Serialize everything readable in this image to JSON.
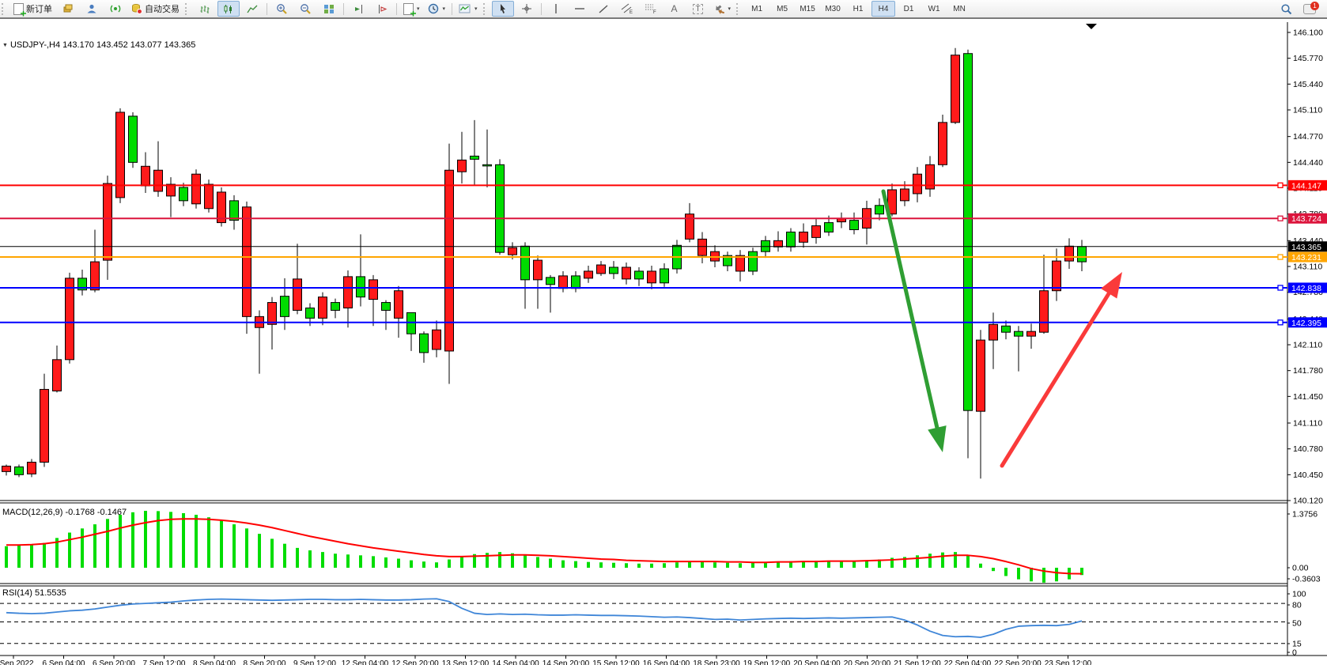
{
  "toolbar": {
    "new_order_label": "新订单",
    "auto_trading_label": "自动交易",
    "caret": "▾",
    "timeframes": [
      "M1",
      "M5",
      "M15",
      "M30",
      "H1",
      "H4",
      "D1",
      "W1",
      "MN"
    ],
    "active_timeframe": "H4",
    "notification_count": "1",
    "text_tool_label": "A",
    "text_box_label": "T",
    "channel_letter": "E",
    "fibo_letter": "F"
  },
  "chart": {
    "collapse_marker": "▼",
    "title_line": "USDJPY-,H4  143.170 143.452 143.077 143.365"
  },
  "chart_data": {
    "type": "candlestick",
    "symbol": "USDJPY-",
    "period": "H4",
    "open": "143.170",
    "high": "143.452",
    "low": "143.077",
    "close": "143.365",
    "colors": {
      "bull": "#00dc00",
      "bear": "#ff1a1a",
      "wick": "#000000",
      "macd_bar": "#00dd00",
      "macd_signal": "#ff0000",
      "rsi_line": "#3f86d8",
      "bid_line": "#000000"
    },
    "price_axis": {
      "min": 140.12,
      "max": 146.1,
      "ticks": [
        "146.100",
        "145.770",
        "145.440",
        "145.110",
        "144.770",
        "144.440",
        "144.110",
        "143.780",
        "143.440",
        "143.110",
        "142.780",
        "142.440",
        "142.110",
        "141.780",
        "141.450",
        "141.110",
        "140.780",
        "140.450",
        "140.120"
      ]
    },
    "hlines": [
      {
        "price": 144.147,
        "label": "144.147",
        "color": "#ff0000",
        "width": 2
      },
      {
        "price": 143.724,
        "label": "143.724",
        "color": "#dc143c",
        "width": 2
      },
      {
        "price": 143.365,
        "label": "143.365",
        "color": "#000000",
        "width": 1
      },
      {
        "price": 143.231,
        "label": "143.231",
        "color": "#ffa500",
        "width": 2
      },
      {
        "price": 142.838,
        "label": "142.838",
        "color": "#0000ff",
        "width": 2
      },
      {
        "price": 142.395,
        "label": "142.395",
        "color": "#0000ff",
        "width": 2
      }
    ],
    "time_labels": [
      "5 Sep 2022",
      "6 Sep 04:00",
      "6 Sep 20:00",
      "7 Sep 12:00",
      "8 Sep 04:00",
      "8 Sep 20:00",
      "9 Sep 12:00",
      "12 Sep 04:00",
      "12 Sep 20:00",
      "13 Sep 12:00",
      "14 Sep 04:00",
      "14 Sep 20:00",
      "15 Sep 12:00",
      "16 Sep 04:00",
      "18 Sep 23:00",
      "19 Sep 12:00",
      "20 Sep 04:00",
      "20 Sep 20:00",
      "21 Sep 12:00",
      "22 Sep 04:00",
      "22 Sep 20:00",
      "23 Sep 12:00"
    ],
    "candles": [
      [
        140.56,
        140.58,
        140.44,
        140.49
      ],
      [
        140.45,
        140.58,
        140.42,
        140.55
      ],
      [
        140.61,
        140.65,
        140.42,
        140.46
      ],
      [
        141.54,
        141.74,
        140.55,
        140.61
      ],
      [
        141.92,
        142.1,
        141.5,
        141.52
      ],
      [
        142.96,
        143.03,
        141.87,
        141.92
      ],
      [
        142.81,
        143.07,
        142.74,
        142.96
      ],
      [
        143.17,
        143.58,
        142.78,
        142.81
      ],
      [
        144.17,
        144.27,
        142.94,
        143.19
      ],
      [
        145.08,
        145.13,
        143.92,
        143.99
      ],
      [
        144.44,
        145.08,
        144.37,
        145.03
      ],
      [
        144.39,
        144.57,
        144.05,
        144.14
      ],
      [
        144.34,
        144.71,
        144.0,
        144.07
      ],
      [
        144.16,
        144.25,
        143.74,
        144.01
      ],
      [
        143.95,
        144.18,
        143.88,
        144.12
      ],
      [
        144.29,
        144.35,
        143.85,
        143.91
      ],
      [
        144.16,
        144.22,
        143.8,
        143.85
      ],
      [
        144.06,
        144.12,
        143.62,
        143.67
      ],
      [
        143.7,
        144.02,
        143.58,
        143.95
      ],
      [
        143.87,
        143.94,
        142.25,
        142.47
      ],
      [
        142.47,
        142.55,
        141.74,
        142.33
      ],
      [
        142.65,
        142.72,
        142.05,
        142.37
      ],
      [
        142.47,
        142.96,
        142.3,
        142.73
      ],
      [
        142.95,
        143.4,
        142.5,
        142.55
      ],
      [
        142.45,
        142.64,
        142.35,
        142.58
      ],
      [
        142.72,
        142.78,
        142.36,
        142.45
      ],
      [
        142.55,
        142.7,
        142.45,
        142.65
      ],
      [
        142.98,
        143.06,
        142.33,
        142.58
      ],
      [
        142.72,
        143.52,
        142.6,
        142.98
      ],
      [
        142.94,
        143.0,
        142.35,
        142.69
      ],
      [
        142.55,
        142.68,
        142.3,
        142.65
      ],
      [
        142.8,
        142.86,
        142.2,
        142.45
      ],
      [
        142.25,
        142.4,
        142.03,
        142.52
      ],
      [
        142.01,
        142.28,
        141.88,
        142.25
      ],
      [
        142.3,
        142.42,
        141.95,
        142.05
      ],
      [
        144.34,
        144.68,
        141.61,
        142.03
      ],
      [
        144.47,
        144.83,
        144.17,
        144.32
      ],
      [
        144.48,
        144.98,
        144.15,
        144.52
      ],
      [
        144.4,
        144.86,
        144.12,
        144.41
      ],
      [
        143.29,
        144.48,
        143.26,
        144.41
      ],
      [
        143.35,
        143.42,
        143.2,
        143.26
      ],
      [
        142.94,
        143.42,
        142.57,
        143.37
      ],
      [
        143.19,
        143.25,
        142.57,
        142.94
      ],
      [
        142.88,
        143.0,
        142.52,
        142.97
      ],
      [
        142.99,
        143.05,
        142.78,
        142.83
      ],
      [
        142.83,
        143.05,
        142.78,
        142.99
      ],
      [
        143.05,
        143.12,
        142.9,
        142.96
      ],
      [
        143.13,
        143.18,
        142.99,
        143.02
      ],
      [
        143.02,
        143.18,
        142.95,
        143.1
      ],
      [
        143.1,
        143.16,
        142.88,
        142.95
      ],
      [
        142.95,
        143.1,
        142.86,
        143.05
      ],
      [
        143.05,
        143.12,
        142.82,
        142.9
      ],
      [
        142.9,
        143.15,
        142.85,
        143.08
      ],
      [
        143.08,
        143.45,
        143.02,
        143.38
      ],
      [
        143.78,
        143.92,
        143.42,
        143.46
      ],
      [
        143.46,
        143.55,
        143.15,
        143.25
      ],
      [
        143.3,
        143.38,
        143.1,
        143.18
      ],
      [
        143.12,
        143.3,
        143.05,
        143.25
      ],
      [
        143.25,
        143.32,
        142.92,
        143.05
      ],
      [
        143.05,
        143.35,
        143.0,
        143.3
      ],
      [
        143.3,
        143.5,
        143.22,
        143.44
      ],
      [
        143.44,
        143.56,
        143.3,
        143.36
      ],
      [
        143.36,
        143.6,
        143.3,
        143.55
      ],
      [
        143.55,
        143.66,
        143.35,
        143.42
      ],
      [
        143.63,
        143.72,
        143.4,
        143.48
      ],
      [
        143.55,
        143.76,
        143.5,
        143.67
      ],
      [
        143.72,
        143.8,
        143.6,
        143.68
      ],
      [
        143.58,
        143.8,
        143.52,
        143.7
      ],
      [
        143.85,
        143.95,
        143.39,
        143.6
      ],
      [
        143.78,
        143.98,
        143.7,
        143.89
      ],
      [
        144.09,
        144.17,
        143.75,
        143.78
      ],
      [
        144.1,
        144.2,
        143.88,
        143.95
      ],
      [
        144.29,
        144.38,
        143.93,
        144.04
      ],
      [
        144.41,
        144.52,
        144.0,
        144.1
      ],
      [
        144.95,
        145.05,
        144.38,
        144.41
      ],
      [
        145.81,
        145.9,
        144.93,
        144.95
      ],
      [
        141.27,
        145.88,
        140.66,
        145.83
      ],
      [
        142.17,
        142.3,
        140.4,
        141.26
      ],
      [
        142.37,
        142.52,
        141.8,
        142.17
      ],
      [
        142.27,
        142.42,
        142.18,
        142.35
      ],
      [
        142.22,
        142.35,
        141.77,
        142.28
      ],
      [
        142.28,
        142.38,
        142.06,
        142.22
      ],
      [
        142.8,
        143.26,
        142.25,
        142.27
      ],
      [
        143.18,
        143.34,
        142.67,
        142.8
      ],
      [
        143.37,
        143.47,
        143.08,
        143.18
      ],
      [
        143.17,
        143.45,
        143.05,
        143.365
      ]
    ],
    "macd": {
      "title": "MACD(12,26,9) -0.1768 -0.1467",
      "axis_labels": [
        [
          "1.3756",
          648
        ],
        [
          "0.00",
          716
        ],
        [
          "-0.3603",
          730
        ]
      ],
      "histogram": [
        0.52,
        0.55,
        0.56,
        0.6,
        0.72,
        0.85,
        0.95,
        1.05,
        1.18,
        1.28,
        1.34,
        1.376,
        1.37,
        1.35,
        1.32,
        1.28,
        1.22,
        1.15,
        1.05,
        0.95,
        0.82,
        0.7,
        0.58,
        0.48,
        0.42,
        0.38,
        0.34,
        0.32,
        0.3,
        0.28,
        0.25,
        0.22,
        0.18,
        0.15,
        0.13,
        0.2,
        0.28,
        0.33,
        0.36,
        0.38,
        0.35,
        0.3,
        0.26,
        0.22,
        0.18,
        0.16,
        0.14,
        0.13,
        0.12,
        0.11,
        0.1,
        0.1,
        0.11,
        0.13,
        0.16,
        0.15,
        0.13,
        0.12,
        0.11,
        0.12,
        0.14,
        0.15,
        0.16,
        0.16,
        0.17,
        0.17,
        0.16,
        0.16,
        0.18,
        0.2,
        0.24,
        0.26,
        0.3,
        0.34,
        0.37,
        0.38,
        0.3,
        0.1,
        -0.08,
        -0.2,
        -0.28,
        -0.33,
        -0.36,
        -0.33,
        -0.28,
        -0.1768
      ],
      "signal": [
        0.55,
        0.55,
        0.56,
        0.58,
        0.62,
        0.68,
        0.74,
        0.81,
        0.88,
        0.96,
        1.03,
        1.09,
        1.14,
        1.17,
        1.18,
        1.18,
        1.17,
        1.15,
        1.12,
        1.08,
        1.03,
        0.97,
        0.9,
        0.83,
        0.76,
        0.7,
        0.64,
        0.58,
        0.53,
        0.48,
        0.44,
        0.4,
        0.36,
        0.32,
        0.29,
        0.27,
        0.27,
        0.28,
        0.29,
        0.3,
        0.31,
        0.31,
        0.3,
        0.29,
        0.27,
        0.25,
        0.23,
        0.21,
        0.2,
        0.18,
        0.17,
        0.16,
        0.15,
        0.15,
        0.15,
        0.15,
        0.15,
        0.14,
        0.14,
        0.13,
        0.13,
        0.14,
        0.14,
        0.15,
        0.15,
        0.16,
        0.16,
        0.16,
        0.17,
        0.18,
        0.19,
        0.21,
        0.23,
        0.25,
        0.28,
        0.3,
        0.3,
        0.27,
        0.22,
        0.15,
        0.07,
        -0.02,
        -0.08,
        -0.12,
        -0.14,
        -0.1467
      ]
    },
    "rsi": {
      "title": "RSI(14) 51.5535",
      "levels": [
        80,
        50,
        15
      ],
      "axis_labels": [
        [
          "100",
          749
        ],
        [
          "80",
          763
        ],
        [
          "50",
          786
        ],
        [
          "15",
          812
        ],
        [
          "0",
          823
        ]
      ],
      "values": [
        65,
        64,
        63.5,
        64,
        66,
        68,
        69,
        71,
        74,
        77,
        79,
        80,
        81,
        82,
        84,
        85.5,
        86.5,
        87,
        86.5,
        86,
        85.5,
        85,
        85.5,
        86,
        86.5,
        86.5,
        86,
        86,
        86.5,
        86,
        85.5,
        85.5,
        86,
        87,
        87.5,
        83,
        72,
        64,
        62,
        63,
        62,
        62.5,
        61.5,
        61,
        61,
        61.5,
        61,
        60.5,
        60.5,
        60,
        59.5,
        58.5,
        57.5,
        58,
        57,
        55.5,
        54,
        54.5,
        53,
        54,
        55,
        55.5,
        56,
        55.5,
        56,
        56.5,
        56,
        56.5,
        57,
        57.5,
        58,
        53,
        45,
        35,
        28,
        26,
        26.5,
        25,
        30,
        38,
        43,
        44,
        44.5,
        44,
        46,
        51.5535
      ]
    },
    "annotations": [
      {
        "type": "arrow",
        "color": "#2f9e33",
        "from": [
          1117,
          240
        ],
        "to": [
          1192,
          570
        ]
      },
      {
        "type": "arrow",
        "color": "#fa3a3a",
        "from": [
          1267,
          587
        ],
        "to": [
          1419,
          342
        ]
      }
    ]
  }
}
